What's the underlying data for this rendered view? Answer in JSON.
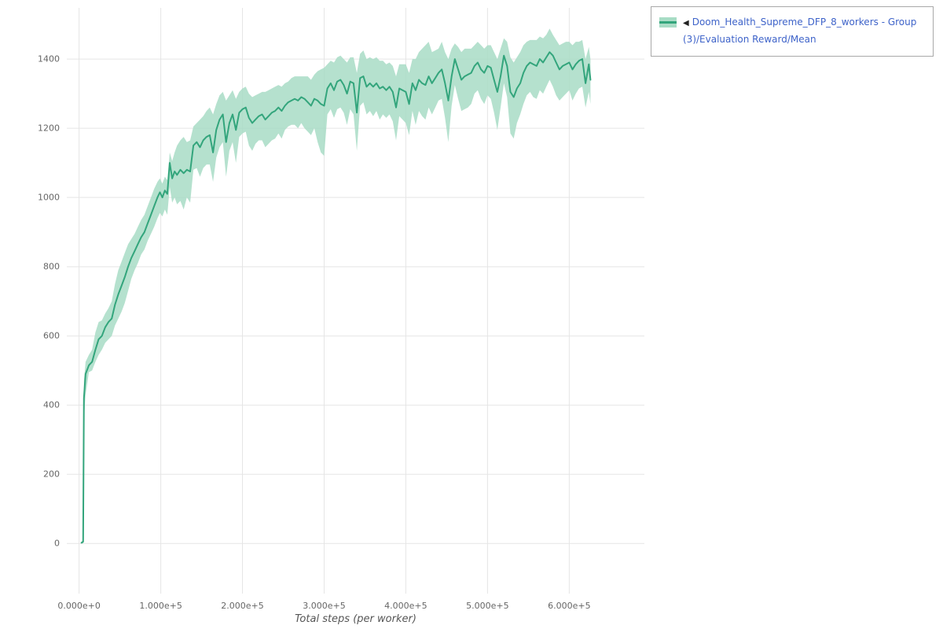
{
  "page": {
    "background": "#ffffff"
  },
  "legend": {
    "collapse_icon": "◀",
    "label": "Doom_Health_Supreme_DFP_8_workers - Group(3)/Evaluation Reward/Mean",
    "text_color": "#3e63c9",
    "swatch": {
      "line_color": "#33a57c",
      "band_color": "#a8dcc5"
    }
  },
  "chart_data": {
    "type": "line",
    "title": "",
    "xlabel": "Total steps (per worker)",
    "ylabel": "",
    "grid": true,
    "legend_position": "top-right",
    "xlim": [
      -15000,
      692000
    ],
    "ylim": [
      -145,
      1548
    ],
    "x_ticks": [
      {
        "v": 0,
        "label": "0.000e+0"
      },
      {
        "v": 100000,
        "label": "1.000e+5"
      },
      {
        "v": 200000,
        "label": "2.000e+5"
      },
      {
        "v": 300000,
        "label": "3.000e+5"
      },
      {
        "v": 400000,
        "label": "4.000e+5"
      },
      {
        "v": 500000,
        "label": "5.000e+5"
      },
      {
        "v": 600000,
        "label": "6.000e+5"
      }
    ],
    "y_ticks": [
      {
        "v": 0,
        "label": "0"
      },
      {
        "v": 200,
        "label": "200"
      },
      {
        "v": 400,
        "label": "400"
      },
      {
        "v": 600,
        "label": "600"
      },
      {
        "v": 800,
        "label": "800"
      },
      {
        "v": 1000,
        "label": "1000"
      },
      {
        "v": 1200,
        "label": "1200"
      },
      {
        "v": 1400,
        "label": "1400"
      }
    ],
    "series": [
      {
        "name": "Doom_Health_Supreme_DFP_8_workers - Group(3)/Evaluation Reward/Mean",
        "color": "#33a57c",
        "band_color": "#a8dcc5",
        "points_format": [
          "step",
          "mean",
          "lower",
          "upper"
        ],
        "points": [
          [
            3000,
            2,
            0,
            5
          ],
          [
            5000,
            5,
            0,
            10
          ],
          [
            6000,
            420,
            360,
            470
          ],
          [
            8000,
            490,
            430,
            525
          ],
          [
            12000,
            515,
            495,
            545
          ],
          [
            16000,
            525,
            500,
            560
          ],
          [
            20000,
            560,
            525,
            610
          ],
          [
            24000,
            590,
            545,
            640
          ],
          [
            28000,
            600,
            560,
            645
          ],
          [
            32000,
            625,
            580,
            665
          ],
          [
            36000,
            640,
            590,
            680
          ],
          [
            40000,
            650,
            600,
            700
          ],
          [
            44000,
            690,
            630,
            750
          ],
          [
            48000,
            720,
            650,
            790
          ],
          [
            52000,
            745,
            670,
            815
          ],
          [
            56000,
            770,
            695,
            840
          ],
          [
            60000,
            800,
            730,
            865
          ],
          [
            64000,
            825,
            765,
            880
          ],
          [
            68000,
            845,
            790,
            895
          ],
          [
            72000,
            865,
            810,
            915
          ],
          [
            76000,
            885,
            835,
            935
          ],
          [
            80000,
            900,
            850,
            950
          ],
          [
            84000,
            925,
            875,
            975
          ],
          [
            88000,
            950,
            895,
            1000
          ],
          [
            92000,
            975,
            915,
            1025
          ],
          [
            96000,
            1000,
            940,
            1045
          ],
          [
            99000,
            1015,
            955,
            1055
          ],
          [
            102000,
            1000,
            945,
            1040
          ],
          [
            105000,
            1020,
            965,
            1060
          ],
          [
            108000,
            1010,
            950,
            1050
          ],
          [
            111000,
            1100,
            1030,
            1130
          ],
          [
            114000,
            1055,
            985,
            1105
          ],
          [
            117000,
            1075,
            1000,
            1130
          ],
          [
            120000,
            1065,
            980,
            1150
          ],
          [
            124000,
            1080,
            990,
            1165
          ],
          [
            128000,
            1070,
            965,
            1175
          ],
          [
            132000,
            1080,
            1000,
            1160
          ],
          [
            136000,
            1075,
            985,
            1165
          ],
          [
            140000,
            1150,
            1080,
            1205
          ],
          [
            144000,
            1160,
            1085,
            1215
          ],
          [
            148000,
            1145,
            1060,
            1225
          ],
          [
            152000,
            1165,
            1085,
            1235
          ],
          [
            156000,
            1175,
            1095,
            1250
          ],
          [
            160000,
            1180,
            1095,
            1260
          ],
          [
            164000,
            1130,
            1045,
            1240
          ],
          [
            168000,
            1195,
            1115,
            1270
          ],
          [
            172000,
            1225,
            1145,
            1295
          ],
          [
            176000,
            1240,
            1160,
            1305
          ],
          [
            180000,
            1160,
            1060,
            1280
          ],
          [
            184000,
            1215,
            1135,
            1295
          ],
          [
            188000,
            1240,
            1160,
            1310
          ],
          [
            192000,
            1195,
            1100,
            1285
          ],
          [
            196000,
            1245,
            1175,
            1305
          ],
          [
            200000,
            1255,
            1185,
            1315
          ],
          [
            204000,
            1260,
            1190,
            1320
          ],
          [
            208000,
            1230,
            1150,
            1300
          ],
          [
            212000,
            1215,
            1135,
            1290
          ],
          [
            216000,
            1225,
            1155,
            1295
          ],
          [
            220000,
            1235,
            1165,
            1300
          ],
          [
            224000,
            1240,
            1165,
            1305
          ],
          [
            228000,
            1225,
            1145,
            1305
          ],
          [
            232000,
            1235,
            1155,
            1310
          ],
          [
            236000,
            1245,
            1165,
            1315
          ],
          [
            240000,
            1250,
            1170,
            1320
          ],
          [
            244000,
            1260,
            1185,
            1325
          ],
          [
            248000,
            1250,
            1170,
            1320
          ],
          [
            252000,
            1265,
            1195,
            1330
          ],
          [
            256000,
            1275,
            1205,
            1335
          ],
          [
            260000,
            1280,
            1210,
            1345
          ],
          [
            264000,
            1285,
            1210,
            1350
          ],
          [
            268000,
            1280,
            1200,
            1350
          ],
          [
            272000,
            1290,
            1215,
            1350
          ],
          [
            276000,
            1285,
            1200,
            1350
          ],
          [
            280000,
            1275,
            1190,
            1350
          ],
          [
            284000,
            1265,
            1180,
            1340
          ],
          [
            288000,
            1285,
            1200,
            1355
          ],
          [
            292000,
            1280,
            1160,
            1365
          ],
          [
            296000,
            1270,
            1130,
            1370
          ],
          [
            300000,
            1265,
            1120,
            1375
          ],
          [
            304000,
            1315,
            1240,
            1385
          ],
          [
            308000,
            1330,
            1255,
            1395
          ],
          [
            312000,
            1310,
            1230,
            1390
          ],
          [
            316000,
            1335,
            1255,
            1405
          ],
          [
            320000,
            1340,
            1260,
            1410
          ],
          [
            324000,
            1325,
            1245,
            1400
          ],
          [
            328000,
            1300,
            1210,
            1390
          ],
          [
            332000,
            1335,
            1255,
            1405
          ],
          [
            336000,
            1330,
            1240,
            1405
          ],
          [
            340000,
            1245,
            1135,
            1360
          ],
          [
            344000,
            1345,
            1265,
            1415
          ],
          [
            348000,
            1350,
            1275,
            1425
          ],
          [
            352000,
            1320,
            1240,
            1400
          ],
          [
            356000,
            1330,
            1250,
            1405
          ],
          [
            360000,
            1320,
            1235,
            1400
          ],
          [
            364000,
            1330,
            1250,
            1405
          ],
          [
            368000,
            1315,
            1225,
            1395
          ],
          [
            372000,
            1320,
            1240,
            1395
          ],
          [
            376000,
            1310,
            1230,
            1385
          ],
          [
            380000,
            1320,
            1240,
            1390
          ],
          [
            384000,
            1305,
            1220,
            1380
          ],
          [
            388000,
            1260,
            1165,
            1350
          ],
          [
            392000,
            1315,
            1235,
            1385
          ],
          [
            396000,
            1310,
            1225,
            1385
          ],
          [
            400000,
            1305,
            1215,
            1385
          ],
          [
            404000,
            1270,
            1180,
            1360
          ],
          [
            408000,
            1330,
            1250,
            1400
          ],
          [
            412000,
            1310,
            1210,
            1400
          ],
          [
            416000,
            1340,
            1250,
            1420
          ],
          [
            420000,
            1330,
            1235,
            1430
          ],
          [
            424000,
            1325,
            1225,
            1440
          ],
          [
            428000,
            1350,
            1260,
            1450
          ],
          [
            432000,
            1330,
            1240,
            1420
          ],
          [
            436000,
            1345,
            1260,
            1425
          ],
          [
            440000,
            1360,
            1280,
            1430
          ],
          [
            444000,
            1370,
            1285,
            1450
          ],
          [
            448000,
            1330,
            1230,
            1420
          ],
          [
            452000,
            1280,
            1160,
            1400
          ],
          [
            456000,
            1350,
            1265,
            1430
          ],
          [
            460000,
            1400,
            1325,
            1445
          ],
          [
            464000,
            1370,
            1285,
            1435
          ],
          [
            468000,
            1340,
            1250,
            1420
          ],
          [
            472000,
            1350,
            1255,
            1430
          ],
          [
            476000,
            1355,
            1260,
            1430
          ],
          [
            480000,
            1360,
            1270,
            1430
          ],
          [
            484000,
            1380,
            1300,
            1440
          ],
          [
            488000,
            1390,
            1310,
            1450
          ],
          [
            492000,
            1370,
            1285,
            1440
          ],
          [
            496000,
            1360,
            1270,
            1430
          ],
          [
            500000,
            1380,
            1295,
            1440
          ],
          [
            504000,
            1375,
            1285,
            1440
          ],
          [
            508000,
            1340,
            1245,
            1420
          ],
          [
            512000,
            1305,
            1195,
            1400
          ],
          [
            516000,
            1350,
            1260,
            1430
          ],
          [
            520000,
            1410,
            1330,
            1460
          ],
          [
            524000,
            1380,
            1290,
            1450
          ],
          [
            528000,
            1305,
            1185,
            1405
          ],
          [
            532000,
            1290,
            1170,
            1390
          ],
          [
            536000,
            1315,
            1215,
            1405
          ],
          [
            540000,
            1330,
            1240,
            1420
          ],
          [
            544000,
            1360,
            1270,
            1440
          ],
          [
            548000,
            1380,
            1295,
            1450
          ],
          [
            552000,
            1390,
            1305,
            1455
          ],
          [
            556000,
            1385,
            1290,
            1455
          ],
          [
            560000,
            1380,
            1285,
            1455
          ],
          [
            564000,
            1400,
            1310,
            1465
          ],
          [
            568000,
            1390,
            1300,
            1460
          ],
          [
            572000,
            1405,
            1320,
            1470
          ],
          [
            576000,
            1420,
            1340,
            1488
          ],
          [
            580000,
            1410,
            1320,
            1470
          ],
          [
            584000,
            1390,
            1295,
            1455
          ],
          [
            588000,
            1370,
            1280,
            1440
          ],
          [
            592000,
            1380,
            1290,
            1445
          ],
          [
            596000,
            1385,
            1300,
            1450
          ],
          [
            600000,
            1390,
            1310,
            1450
          ],
          [
            604000,
            1370,
            1280,
            1440
          ],
          [
            608000,
            1385,
            1300,
            1450
          ],
          [
            612000,
            1395,
            1315,
            1450
          ],
          [
            616000,
            1400,
            1320,
            1455
          ],
          [
            620000,
            1330,
            1260,
            1400
          ],
          [
            624000,
            1385,
            1305,
            1435
          ],
          [
            626000,
            1340,
            1270,
            1400
          ]
        ]
      }
    ]
  }
}
